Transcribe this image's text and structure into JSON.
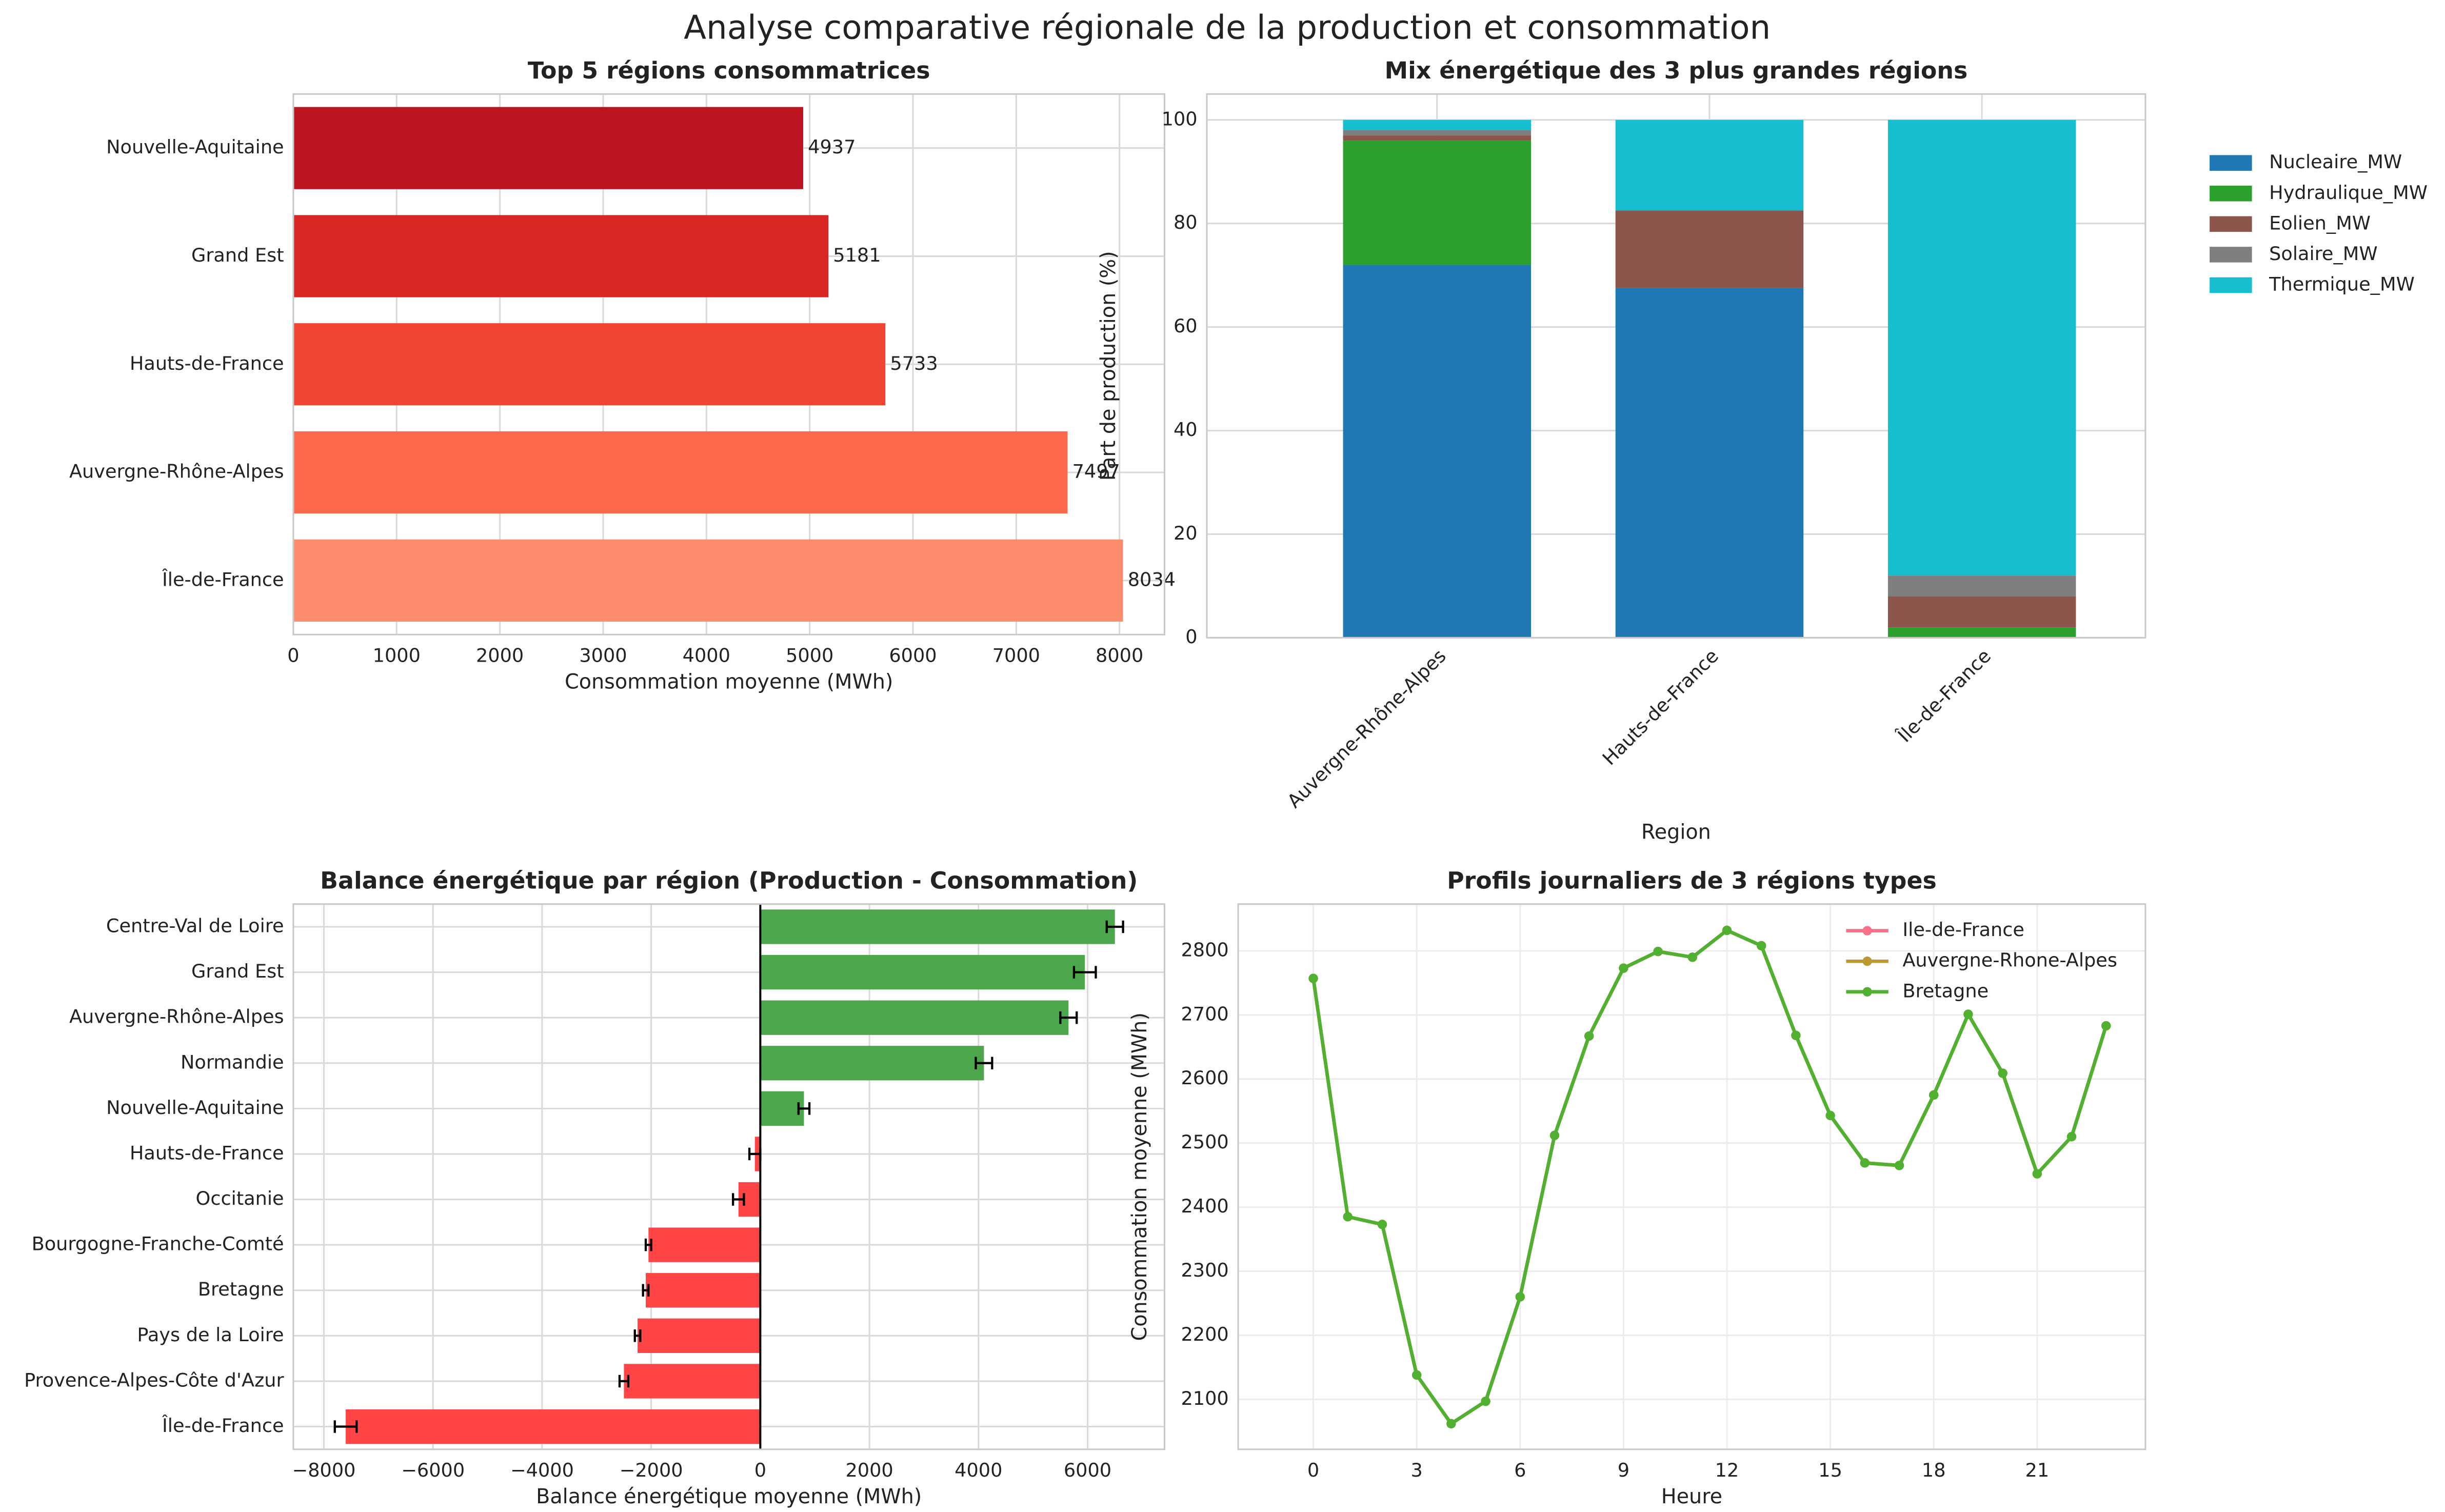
{
  "title": "Analyse comparative régionale de la production et consommation",
  "chart_data": [
    {
      "type": "barh",
      "title": "Top 5 régions consommatrices",
      "categories": [
        "Nouvelle-Aquitaine",
        "Grand Est",
        "Hauts-de-France",
        "Auvergne-Rhône-Alpes",
        "Île-de-France"
      ],
      "values": [
        4937,
        5181,
        5733,
        7497,
        8034
      ],
      "colors": [
        "#bd1520",
        "#d92723",
        "#f14432",
        "#fc6a4b",
        "#fc8c6c"
      ],
      "xlabel": "Consommation moyenne (MWh)",
      "xlim": [
        0,
        8436
      ],
      "xticks": [
        0,
        1000,
        2000,
        3000,
        4000,
        5000,
        6000,
        7000,
        8000
      ],
      "grid": true
    },
    {
      "type": "stacked_bar",
      "title": "Mix énergétique des 3 plus grandes régions",
      "categories": [
        "Auvergne-Rhône-Alpes",
        "Hauts-de-France",
        "Île-de-France"
      ],
      "series": [
        {
          "name": "Nucleaire_MW",
          "color": "#1f77b4",
          "values": [
            72,
            67.5,
            0
          ]
        },
        {
          "name": "Hydraulique_MW",
          "color": "#2ca02c",
          "values": [
            24,
            0,
            2
          ]
        },
        {
          "name": "Eolien_MW",
          "color": "#8c564b",
          "values": [
            1,
            15,
            6
          ]
        },
        {
          "name": "Solaire_MW",
          "color": "#7f7f7f",
          "values": [
            1,
            0,
            4
          ]
        },
        {
          "name": "Thermique_MW",
          "color": "#17becf",
          "values": [
            2,
            17.5,
            88
          ]
        }
      ],
      "xlabel": "Region",
      "ylabel": "Part de production (%)",
      "ylim": [
        0,
        105
      ],
      "yticks": [
        0,
        20,
        40,
        60,
        80,
        100
      ],
      "grid": true,
      "legend": "outside right"
    },
    {
      "type": "barh_error",
      "title": "Balance énergétique par région (Production - Consommation)",
      "categories": [
        "Centre-Val de Loire",
        "Grand Est",
        "Auvergne-Rhône-Alpes",
        "Normandie",
        "Nouvelle-Aquitaine",
        "Hauts-de-France",
        "Occitanie",
        "Bourgogne-Franche-Comté",
        "Bretagne",
        "Pays de la Loire",
        "Provence-Alpes-Côte d'Azur",
        "Île-de-France"
      ],
      "values": [
        6500,
        5950,
        5650,
        4100,
        800,
        -100,
        -400,
        -2050,
        -2100,
        -2250,
        -2500,
        -7600
      ],
      "errors": [
        150,
        200,
        150,
        150,
        100,
        100,
        100,
        50,
        50,
        50,
        80,
        200
      ],
      "positive_color": "#4ca64c",
      "negative_color": "#ff4545",
      "xlabel": "Balance énergétique moyenne (MWh)",
      "xlim": [
        -8560,
        7410
      ],
      "xticks": [
        {
          "value": -8000,
          "label": "−8000"
        },
        {
          "value": -6000,
          "label": "−6000"
        },
        {
          "value": -4000,
          "label": "−4000"
        },
        {
          "value": -2000,
          "label": "−2000"
        },
        0,
        2000,
        4000,
        6000
      ],
      "grid": true
    },
    {
      "type": "line",
      "title": "Profils journaliers de 3 régions types",
      "x": [
        0,
        1,
        2,
        3,
        4,
        5,
        6,
        7,
        8,
        9,
        10,
        11,
        12,
        13,
        14,
        15,
        16,
        17,
        18,
        19,
        20,
        21,
        22,
        23
      ],
      "series": [
        {
          "name": "Ile-de-France",
          "color": "#f77189",
          "values": [
            2757,
            2385,
            2373,
            2138,
            2062,
            2097,
            2260,
            2512,
            2667,
            2773,
            2799,
            2790,
            2832,
            2808,
            2668,
            2543,
            2469,
            2465,
            2575,
            2701,
            2609,
            2452,
            2510,
            2683
          ]
        },
        {
          "name": "Auvergne-Rhone-Alpes",
          "color": "#bb9832",
          "values": [
            2757,
            2385,
            2373,
            2138,
            2062,
            2097,
            2260,
            2512,
            2667,
            2773,
            2799,
            2790,
            2832,
            2808,
            2668,
            2543,
            2469,
            2465,
            2575,
            2701,
            2609,
            2452,
            2510,
            2683
          ]
        },
        {
          "name": "Bretagne",
          "color": "#50b131",
          "values": [
            2757,
            2385,
            2373,
            2138,
            2062,
            2097,
            2260,
            2512,
            2667,
            2773,
            2799,
            2790,
            2832,
            2808,
            2668,
            2543,
            2469,
            2465,
            2575,
            2701,
            2609,
            2452,
            2510,
            2683
          ]
        }
      ],
      "xlabel": "Heure",
      "ylabel": "Consommation moyenne (MWh)",
      "xlim": [
        -2.18,
        24.14
      ],
      "xticks": [
        0,
        3,
        6,
        9,
        12,
        15,
        18,
        21
      ],
      "ylim": [
        2022,
        2873
      ],
      "yticks": [
        2100,
        2200,
        2300,
        2400,
        2500,
        2600,
        2700,
        2800
      ],
      "grid": true,
      "legend": "upper right"
    }
  ]
}
